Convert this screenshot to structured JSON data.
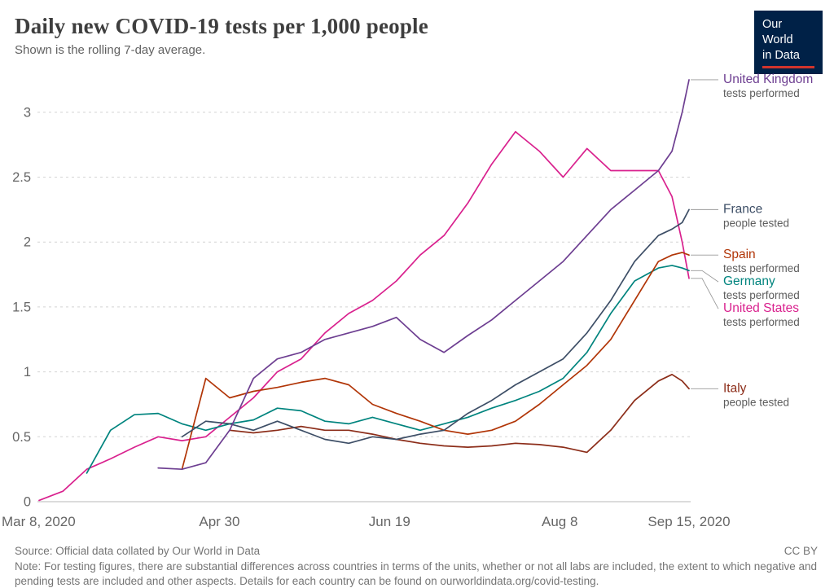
{
  "logo": {
    "line1": "Our World",
    "line2": "in Data"
  },
  "chart_data": {
    "type": "line",
    "title": "Daily new COVID-19 tests per 1,000 people",
    "subtitle": "Shown is the rolling 7-day average.",
    "xlabel": "",
    "ylabel": "",
    "x_unit": "day offset from Mar 8, 2020",
    "xlim": [
      0,
      191
    ],
    "ylim": [
      0,
      3.3
    ],
    "grid": "dashed horizontal",
    "legend_position": "right",
    "y_ticks": [
      0,
      0.5,
      1,
      1.5,
      2,
      2.5,
      3
    ],
    "x_ticks": [
      {
        "day": 0,
        "label": "Mar 8, 2020",
        "align": "start"
      },
      {
        "day": 53,
        "label": "Apr 30",
        "align": "middle"
      },
      {
        "day": 103,
        "label": "Jun 19",
        "align": "middle"
      },
      {
        "day": 153,
        "label": "Aug 8",
        "align": "middle"
      },
      {
        "day": 191,
        "label": "Sep 15, 2020",
        "align": "middle"
      }
    ],
    "x_days": [
      0,
      7,
      14,
      21,
      28,
      35,
      42,
      49,
      56,
      63,
      70,
      77,
      84,
      91,
      98,
      105,
      112,
      119,
      126,
      133,
      140,
      147,
      154,
      161,
      168,
      175,
      182,
      186,
      189,
      191
    ],
    "series": [
      {
        "name": "United States",
        "unit": "tests performed",
        "color": "#d9218e",
        "values": [
          0.01,
          0.08,
          0.25,
          0.33,
          0.42,
          0.5,
          0.47,
          0.5,
          0.65,
          0.8,
          1.0,
          1.1,
          1.3,
          1.45,
          1.55,
          1.7,
          1.9,
          2.05,
          2.3,
          2.6,
          2.85,
          2.7,
          2.5,
          2.72,
          2.55,
          2.55,
          2.55,
          2.35,
          2.0,
          1.72
        ]
      },
      {
        "name": "Germany",
        "unit": "tests performed",
        "color": "#00847e",
        "values": [
          null,
          null,
          0.22,
          0.55,
          0.67,
          0.68,
          0.6,
          0.55,
          0.6,
          0.63,
          0.72,
          0.7,
          0.62,
          0.6,
          0.65,
          0.6,
          0.55,
          0.6,
          0.65,
          0.72,
          0.78,
          0.85,
          0.95,
          1.15,
          1.45,
          1.7,
          1.8,
          1.82,
          1.8,
          1.78
        ]
      },
      {
        "name": "Spain",
        "unit": "tests performed",
        "color": "#b13507",
        "values": [
          null,
          null,
          null,
          null,
          null,
          null,
          0.25,
          0.95,
          0.8,
          0.85,
          0.88,
          0.92,
          0.95,
          0.9,
          0.75,
          0.68,
          0.62,
          0.55,
          0.52,
          0.55,
          0.62,
          0.75,
          0.9,
          1.05,
          1.25,
          1.55,
          1.85,
          1.9,
          1.92,
          1.9
        ]
      },
      {
        "name": "Italy",
        "unit": "people tested",
        "color": "#8c2d19",
        "values": [
          null,
          null,
          null,
          null,
          null,
          null,
          null,
          null,
          0.55,
          0.53,
          0.55,
          0.58,
          0.55,
          0.55,
          0.52,
          0.48,
          0.45,
          0.43,
          0.42,
          0.43,
          0.45,
          0.44,
          0.42,
          0.38,
          0.55,
          0.78,
          0.93,
          0.98,
          0.93,
          0.87
        ]
      },
      {
        "name": "France",
        "unit": "people tested",
        "color": "#3d4e66",
        "values": [
          null,
          null,
          null,
          null,
          null,
          null,
          0.5,
          0.62,
          0.6,
          0.55,
          0.62,
          0.55,
          0.48,
          0.45,
          0.5,
          0.48,
          0.52,
          0.55,
          0.68,
          0.78,
          0.9,
          1.0,
          1.1,
          1.3,
          1.55,
          1.85,
          2.05,
          2.1,
          2.15,
          2.25
        ]
      },
      {
        "name": "United Kingdom",
        "unit": "tests performed",
        "color": "#6d3e91",
        "values": [
          null,
          null,
          null,
          null,
          null,
          0.26,
          0.25,
          0.3,
          0.55,
          0.95,
          1.1,
          1.15,
          1.25,
          1.3,
          1.35,
          1.42,
          1.25,
          1.15,
          1.28,
          1.4,
          1.55,
          1.7,
          1.85,
          2.05,
          2.25,
          2.4,
          2.55,
          2.7,
          3.0,
          3.25
        ]
      }
    ]
  },
  "footer": {
    "source": "Source: Official data collated by Our World in Data",
    "license": "CC BY",
    "note": "Note: For testing figures, there are substantial differences across countries in terms of the units, whether or not all labs are included, the extent to which negative and pending tests are included and other aspects. Details for each country can be found on ourworldindata.org/covid-testing."
  }
}
